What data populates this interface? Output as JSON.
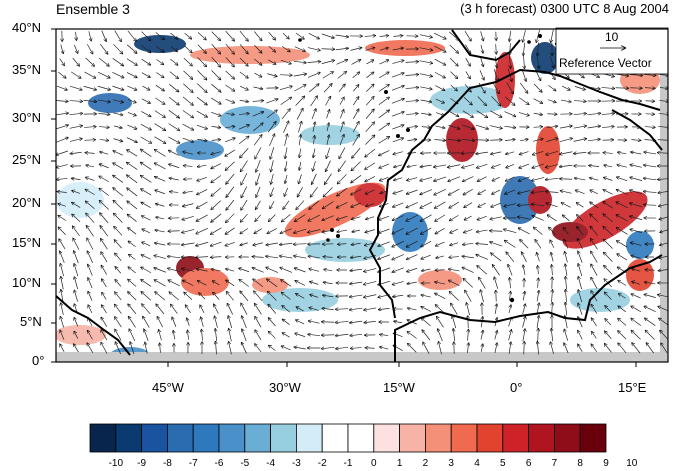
{
  "header": {
    "left": "Ensemble 3",
    "right": "(3 h forecast) 0300 UTC 8 Aug 2004"
  },
  "map": {
    "lat_labels": [
      "40°N",
      "35°N",
      "30°N",
      "25°N",
      "20°N",
      "15°N",
      "10°N",
      "5°N",
      "0°"
    ],
    "lon_labels": [
      "45°W",
      "30°W",
      "15°W",
      "0°",
      "15°E"
    ],
    "ref_vector": {
      "value": "10",
      "label": "Reference Vector"
    },
    "colors": {
      "coast": "#000000",
      "frame": "#000000",
      "missing": "#c8c8c8"
    }
  },
  "colorbar": {
    "labels": [
      "-10",
      "-9",
      "-8",
      "-7",
      "-6",
      "-5",
      "-4",
      "-3",
      "-2",
      "-1",
      "0",
      "1",
      "2",
      "3",
      "4",
      "5",
      "6",
      "7",
      "8",
      "9",
      "10"
    ],
    "colors": [
      "#08254d",
      "#0b3a70",
      "#1a53a0",
      "#2b6cb0",
      "#2e79bd",
      "#4b91c9",
      "#6aaed6",
      "#98cfe0",
      "#d4ecf7",
      "#ffffff",
      "#ffffff",
      "#fde0e0",
      "#f7b3a6",
      "#f59078",
      "#f06a50",
      "#e2432f",
      "#cd2328",
      "#b0141f",
      "#8f0d18",
      "#6a000c"
    ]
  }
}
